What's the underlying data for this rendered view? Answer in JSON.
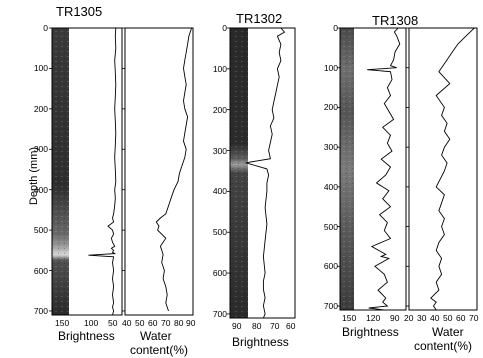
{
  "figure": {
    "y_axis_label": "Depth (mm)",
    "depth_ticks": [
      "0",
      "100",
      "200",
      "300",
      "400",
      "500",
      "600",
      "700"
    ]
  },
  "cores": [
    {
      "title": "TR1305",
      "brightness": {
        "label": "Brightness",
        "ticks": [
          "150",
          "100",
          "50"
        ]
      },
      "water": {
        "label_line1": "Water",
        "label_line2": "content(%)",
        "ticks": [
          "40",
          "50",
          "60",
          "70",
          "80",
          "90"
        ]
      }
    },
    {
      "title": "TR1302",
      "brightness": {
        "label": "Brightness",
        "ticks": [
          "90",
          "80",
          "70",
          "60"
        ]
      }
    },
    {
      "title": "TR1308",
      "brightness": {
        "label": "Brightness",
        "ticks": [
          "150",
          "120",
          "90"
        ]
      },
      "water": {
        "label_line1": "Water",
        "label_line2": "content(%)",
        "ticks": [
          "20",
          "30",
          "40",
          "50",
          "60",
          "70"
        ]
      }
    }
  ],
  "chart_data": [
    {
      "type": "line",
      "name": "TR1305 brightness",
      "xlim": [
        170,
        45
      ],
      "ylim": [
        0,
        710
      ],
      "x": [
        56,
        57,
        56,
        58,
        57,
        56,
        57,
        58,
        57,
        56,
        57,
        58,
        57,
        56,
        58,
        57,
        58,
        60,
        62,
        60,
        70,
        62,
        60,
        64,
        62,
        58,
        64,
        60,
        62,
        58,
        105,
        60,
        62,
        60,
        62,
        60,
        62,
        60,
        62,
        60,
        62
      ],
      "y": [
        0,
        20,
        50,
        80,
        110,
        140,
        170,
        200,
        230,
        260,
        290,
        320,
        350,
        380,
        400,
        420,
        440,
        460,
        470,
        480,
        490,
        500,
        510,
        520,
        530,
        540,
        545,
        550,
        555,
        558,
        562,
        566,
        580,
        600,
        620,
        640,
        660,
        680,
        690,
        700,
        710
      ]
    },
    {
      "type": "line",
      "name": "TR1305 water content",
      "xlim": [
        40,
        90
      ],
      "ylim": [
        0,
        710
      ],
      "x": [
        89,
        87,
        86,
        85,
        84,
        83,
        84,
        85,
        84,
        83,
        84,
        86,
        85,
        84,
        83,
        85,
        84,
        82,
        80,
        79,
        76,
        74,
        72,
        70,
        66,
        63,
        65,
        64,
        70,
        66,
        68,
        67,
        69,
        68,
        70,
        71,
        70,
        72
      ],
      "y": [
        0,
        20,
        40,
        60,
        80,
        100,
        120,
        140,
        160,
        180,
        200,
        220,
        240,
        260,
        280,
        300,
        320,
        340,
        360,
        380,
        400,
        420,
        440,
        460,
        470,
        480,
        490,
        500,
        520,
        540,
        560,
        580,
        600,
        620,
        640,
        660,
        680,
        700
      ]
    },
    {
      "type": "line",
      "name": "TR1302 brightness",
      "xlim": [
        95,
        58
      ],
      "ylim": [
        0,
        710
      ],
      "x": [
        66,
        64,
        68,
        66,
        67,
        66,
        68,
        67,
        68,
        69,
        70,
        71,
        70,
        72,
        71,
        72,
        73,
        72,
        86,
        74,
        73,
        74,
        74,
        75,
        74,
        75,
        76,
        75,
        76,
        76,
        75,
        76,
        75,
        76
      ],
      "y": [
        0,
        10,
        20,
        40,
        60,
        80,
        100,
        120,
        140,
        160,
        180,
        200,
        220,
        240,
        260,
        280,
        300,
        320,
        330,
        345,
        360,
        380,
        400,
        440,
        480,
        520,
        560,
        600,
        620,
        640,
        660,
        680,
        700,
        710
      ]
    },
    {
      "type": "line",
      "name": "TR1308 brightness",
      "xlim": [
        165,
        80
      ],
      "ylim": [
        0,
        710
      ],
      "x": [
        90,
        95,
        92,
        88,
        94,
        96,
        100,
        92,
        130,
        100,
        98,
        104,
        100,
        108,
        102,
        96,
        110,
        100,
        104,
        98,
        112,
        100,
        106,
        118,
        102,
        110,
        100,
        114,
        104,
        108,
        100,
        124,
        106,
        112,
        102,
        120,
        108,
        104,
        116,
        106,
        110,
        104,
        128,
        108,
        112,
        106,
        110,
        104,
        112,
        108
      ],
      "y": [
        0,
        10,
        20,
        40,
        60,
        80,
        95,
        100,
        105,
        110,
        130,
        150,
        170,
        190,
        210,
        230,
        250,
        270,
        290,
        310,
        330,
        350,
        370,
        390,
        410,
        430,
        450,
        470,
        490,
        510,
        530,
        550,
        570,
        575,
        580,
        600,
        620,
        640,
        660,
        680,
        690,
        700,
        705,
        710,
        710,
        710,
        710,
        710,
        710,
        710
      ]
    },
    {
      "type": "line",
      "name": "TR1308 water content",
      "xlim": [
        20,
        70
      ],
      "ylim": [
        0,
        710
      ],
      "x": [
        68,
        62,
        56,
        52,
        48,
        44,
        42,
        50,
        40,
        46,
        44,
        48,
        46,
        50,
        46,
        44,
        48,
        46,
        40,
        46,
        44,
        42,
        46,
        44,
        46,
        42,
        40,
        44,
        42,
        44,
        40,
        42,
        36,
        40,
        38,
        40
      ],
      "y": [
        0,
        20,
        40,
        60,
        80,
        100,
        110,
        140,
        170,
        200,
        220,
        240,
        260,
        280,
        300,
        320,
        340,
        360,
        400,
        420,
        440,
        460,
        480,
        500,
        520,
        540,
        560,
        580,
        600,
        620,
        640,
        660,
        680,
        690,
        700,
        710
      ]
    }
  ]
}
